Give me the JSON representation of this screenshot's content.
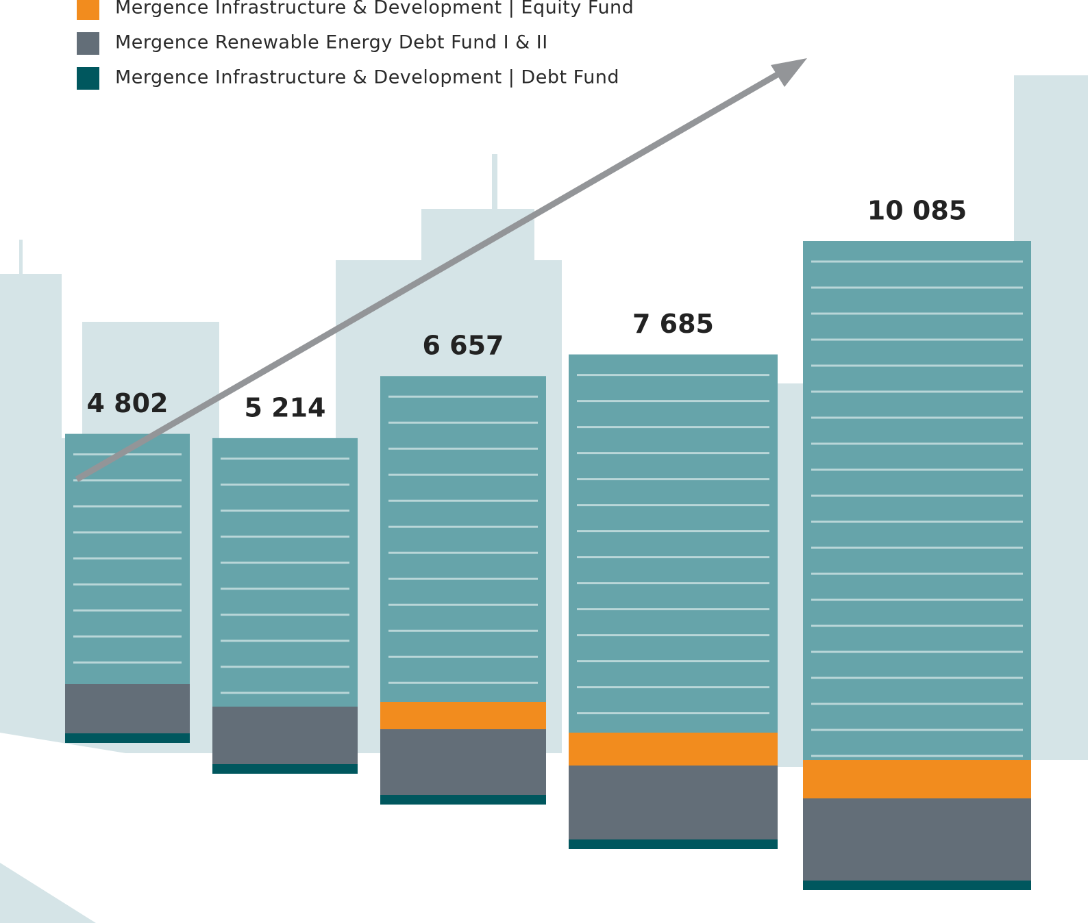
{
  "chart_data": {
    "type": "bar",
    "legend": [
      {
        "name": "Mergence Infrastructure & Development | Equity Fund",
        "color": "#f28c1e"
      },
      {
        "name": "Mergence Renewable Energy Debt Fund I & II",
        "color": "#636e78"
      },
      {
        "name": "Mergence Infrastructure & Development | Debt Fund",
        "color": "#00575e"
      }
    ],
    "categories": [
      null,
      null,
      null,
      null,
      null
    ],
    "values": [
      4802,
      5214,
      6657,
      7685,
      10085
    ],
    "value_labels": [
      "4 802",
      "5 214",
      "6 657",
      "7 685",
      "10 085"
    ],
    "color": "#66a4aa"
  }
}
